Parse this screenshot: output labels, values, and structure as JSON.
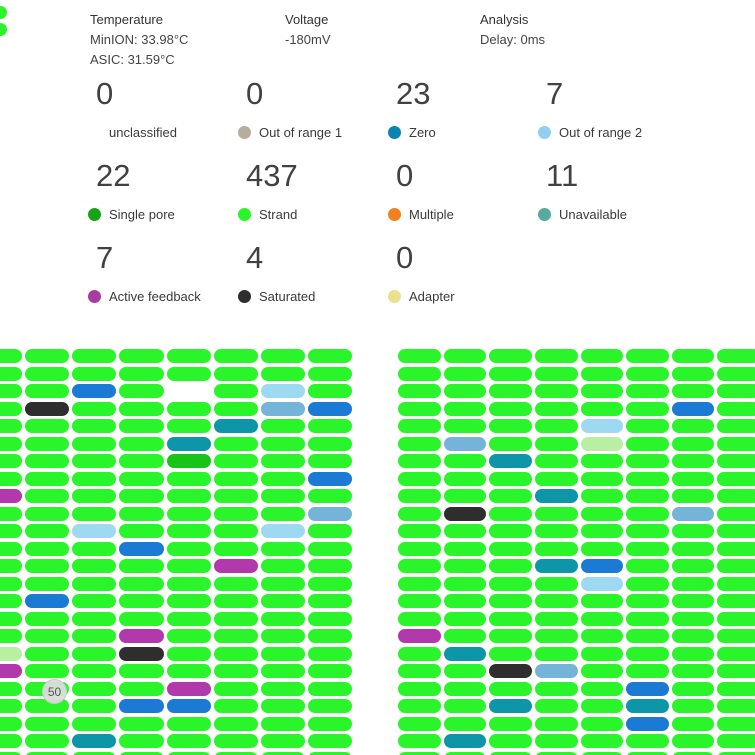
{
  "header": {
    "temperature": {
      "title": "Temperature",
      "line1": "MinION: 33.98°C",
      "line2": "ASIC: 31.59°C"
    },
    "voltage": {
      "title": "Voltage",
      "line1": "-180mV"
    },
    "analysis": {
      "title": "Analysis",
      "line1": "Delay: 0ms"
    }
  },
  "stats": [
    {
      "value": "0",
      "label": "unclassified",
      "dot": null
    },
    {
      "value": "0",
      "label": "Out of range 1",
      "dot": "#b5ada0"
    },
    {
      "value": "23",
      "label": "Zero",
      "dot": "#0a84b5"
    },
    {
      "value": "7",
      "label": "Out of range 2",
      "dot": "#93cdf1"
    },
    {
      "value": "22",
      "label": "Single pore",
      "dot": "#17a517"
    },
    {
      "value": "437",
      "label": "Strand",
      "dot": "#2af52a"
    },
    {
      "value": "0",
      "label": "Multiple",
      "dot": "#f08020"
    },
    {
      "value": "11",
      "label": "Unavailable",
      "dot": "#55ab9d"
    },
    {
      "value": "7",
      "label": "Active feedback",
      "dot": "#a93ba5"
    },
    {
      "value": "4",
      "label": "Saturated",
      "dot": "#2e2e2e"
    },
    {
      "value": "0",
      "label": "Adapter",
      "dot": "#e9e18c"
    }
  ],
  "badge": {
    "text": "50"
  },
  "grid_colors": {
    "g": "#2af52a",
    "d": "#18c418",
    "b": "#1a7ad4",
    "t": "#0d95a8",
    "l": "#9ed9f2",
    "s": "#74b4d8",
    "m": "#b239ac",
    "k": "#2e2e2e",
    "w": "#ffffff",
    "p": "#b9efa2"
  },
  "top_sliver": {
    "rows": [
      "g",
      "g"
    ],
    "tops": [
      6,
      23
    ]
  },
  "grids": {
    "left": [
      "gggggggg",
      "gggggggg",
      "ggbgwglg",
      "gkggggsb",
      "gggggtgg",
      "ggggtggg",
      "ggggdggg",
      "gggggggb",
      "mggggggg",
      "gggggggs",
      "gglggglg",
      "gggbgggg",
      "gggggmgg",
      "gggggggg",
      "gbgggggg",
      "gggggggg",
      "gggmgggg",
      "pggkgggg",
      "mggggggg",
      "ggggmggg",
      "gggbbggg",
      "gggggggg",
      "ggtggggg",
      "gggggggg"
    ],
    "right": [
      "gggggggg",
      "gggggggg",
      "gggggggg",
      "ggggggbg",
      "gggglggg",
      "gsggpggg",
      "ggtggggg",
      "gggggggg",
      "gggtgggg",
      "gkggggsg",
      "gggggggg",
      "gggggggg",
      "gggtbggg",
      "gggglggg",
      "gggggggg",
      "gggggggg",
      "mggggggg",
      "gtgggggg",
      "ggksgggg",
      "gggggbgg",
      "ggtggtgg",
      "gggggbgg",
      "gtgggggg",
      "gggggggg"
    ]
  }
}
